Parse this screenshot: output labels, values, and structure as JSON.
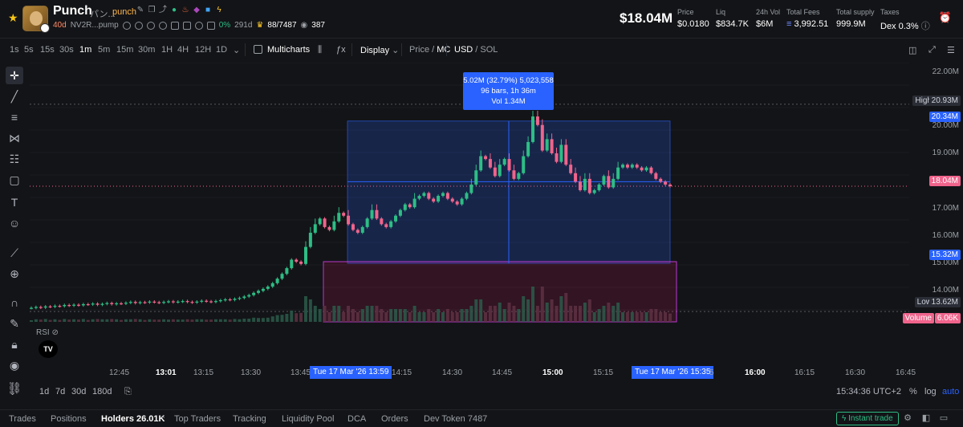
{
  "token": {
    "name": "Punch",
    "jp_name": "パン...",
    "symbol": "punch",
    "age": "40d",
    "address": "NV2R...pump",
    "percent": "0%",
    "count_a": "291d",
    "holders_ratio": "88/7487",
    "views": "387",
    "icons": [
      "edit-icon",
      "copy-icon",
      "share-icon",
      "verified-icon",
      "fire-icon",
      "shield-icon",
      "flag-icon",
      "bolt-icon"
    ]
  },
  "header": {
    "market_cap": "$18.04M",
    "stats": [
      {
        "label": "Price",
        "value": "$0.0180"
      },
      {
        "label": "Liq",
        "value": "$834.7K"
      },
      {
        "label": "24h Vol",
        "value": "$6M"
      },
      {
        "label": "Total Fees",
        "value": "3,992.51"
      },
      {
        "label": "Total supply",
        "value": "999.9M"
      },
      {
        "label": "Taxes",
        "value": "Dex 0.3%"
      }
    ]
  },
  "toolbar": {
    "intervals": [
      "1s",
      "5s",
      "15s",
      "30s",
      "1m",
      "5m",
      "15m",
      "30m",
      "1H",
      "4H",
      "12H",
      "1D"
    ],
    "active_interval": "1m",
    "multicharts": "Multicharts",
    "display": "Display",
    "price_label": "Price",
    "mc_label": "MC",
    "usd_label": "USD",
    "sol_label": "SOL"
  },
  "measure": {
    "line1": "5.02M (32.79%) 5,023,558",
    "line2": "96 bars, 1h 36m",
    "line3": "Vol 1.34M"
  },
  "price_axis": {
    "labels": [
      "22.00M",
      "20.00M",
      "19.00M",
      "17.00M",
      "16.00M",
      "15.00M",
      "14.00M"
    ],
    "high_label": "High",
    "high_value": "20.93M",
    "range_top": "20.34M",
    "current": "18.04M",
    "range_bottom": "15.32M",
    "low_label": "Low",
    "low_value": "13.62M",
    "volume_label": "Volume",
    "volume_value": "6.06K"
  },
  "indicator": {
    "rsi": "RSI"
  },
  "time_axis": {
    "labels": [
      "12:45",
      "13:01",
      "13:15",
      "13:30",
      "13:45",
      "14:15",
      "14:30",
      "14:45",
      "15:00",
      "15:15",
      "16:00",
      "16:15",
      "16:30",
      "16:45"
    ],
    "bold": [
      "13:01",
      "15:00",
      "16:00"
    ],
    "start_highlight": "Tue 17 Mar '26   13:59",
    "end_highlight": "Tue 17 Mar '26   15:35",
    "hidden_tail": "5"
  },
  "bottom": {
    "ranges": [
      "1d",
      "7d",
      "30d",
      "180d"
    ],
    "clock": "15:34:36 UTC+2",
    "percent": "%",
    "log": "log",
    "auto": "auto"
  },
  "tabs": {
    "items": [
      "Trades",
      "Positions",
      "Holders 26.01K",
      "Top Traders",
      "Tracking",
      "Liquidity Pool",
      "DCA",
      "Orders",
      "Dev Token 7487"
    ],
    "active": "Holders 26.01K",
    "instant_trade": "Instant trade"
  },
  "colors": {
    "up": "#2ebd85",
    "down": "#f0648c",
    "accent": "#2962ff",
    "bg": "#131417"
  },
  "chart_data": {
    "type": "candlestick",
    "y_unit": "market cap USD",
    "ylim": [
      13.2,
      22.4
    ],
    "selection": {
      "start": "13:59",
      "end": "15:35",
      "low": 15.32,
      "high": 20.34
    },
    "close_series": [
      13.75,
      13.78,
      13.76,
      13.8,
      13.79,
      13.82,
      13.81,
      13.85,
      13.83,
      13.86,
      13.84,
      13.88,
      13.87,
      13.9,
      13.86,
      13.89,
      13.92,
      13.88,
      13.91,
      13.9,
      13.93,
      13.96,
      13.92,
      13.95,
      13.94,
      13.97,
      13.95,
      13.93,
      13.96,
      13.98,
      13.95,
      13.97,
      13.99,
      13.96,
      13.94,
      13.97,
      14.0,
      13.98,
      13.96,
      13.99,
      14.02,
      14.05,
      14.03,
      14.07,
      14.1,
      14.15,
      14.2,
      14.28,
      14.35,
      14.42,
      14.5,
      14.62,
      14.78,
      14.95,
      15.15,
      15.45,
      15.38,
      15.3,
      15.9,
      16.4,
      16.7,
      16.9,
      16.6,
      16.5,
      16.8,
      17.1,
      17.0,
      16.7,
      16.5,
      16.4,
      16.6,
      16.9,
      17.2,
      16.9,
      16.7,
      16.6,
      16.8,
      17.0,
      17.2,
      17.4,
      17.3,
      17.6,
      17.7,
      17.8,
      17.6,
      17.5,
      17.7,
      17.8,
      17.6,
      17.5,
      17.4,
      17.6,
      17.8,
      18.1,
      18.6,
      19.1,
      19.0,
      18.7,
      18.4,
      18.8,
      19.0,
      18.6,
      18.3,
      18.5,
      19.1,
      19.6,
      20.5,
      20.2,
      19.3,
      19.7,
      19.2,
      18.9,
      19.5,
      18.8,
      18.5,
      18.2,
      17.9,
      18.3,
      17.8,
      17.9,
      18.1,
      18.4,
      18.0,
      18.3,
      18.7,
      18.8,
      18.7,
      18.8,
      18.7,
      18.6,
      18.7,
      18.5,
      18.3,
      18.2,
      18.1,
      18.04
    ]
  }
}
